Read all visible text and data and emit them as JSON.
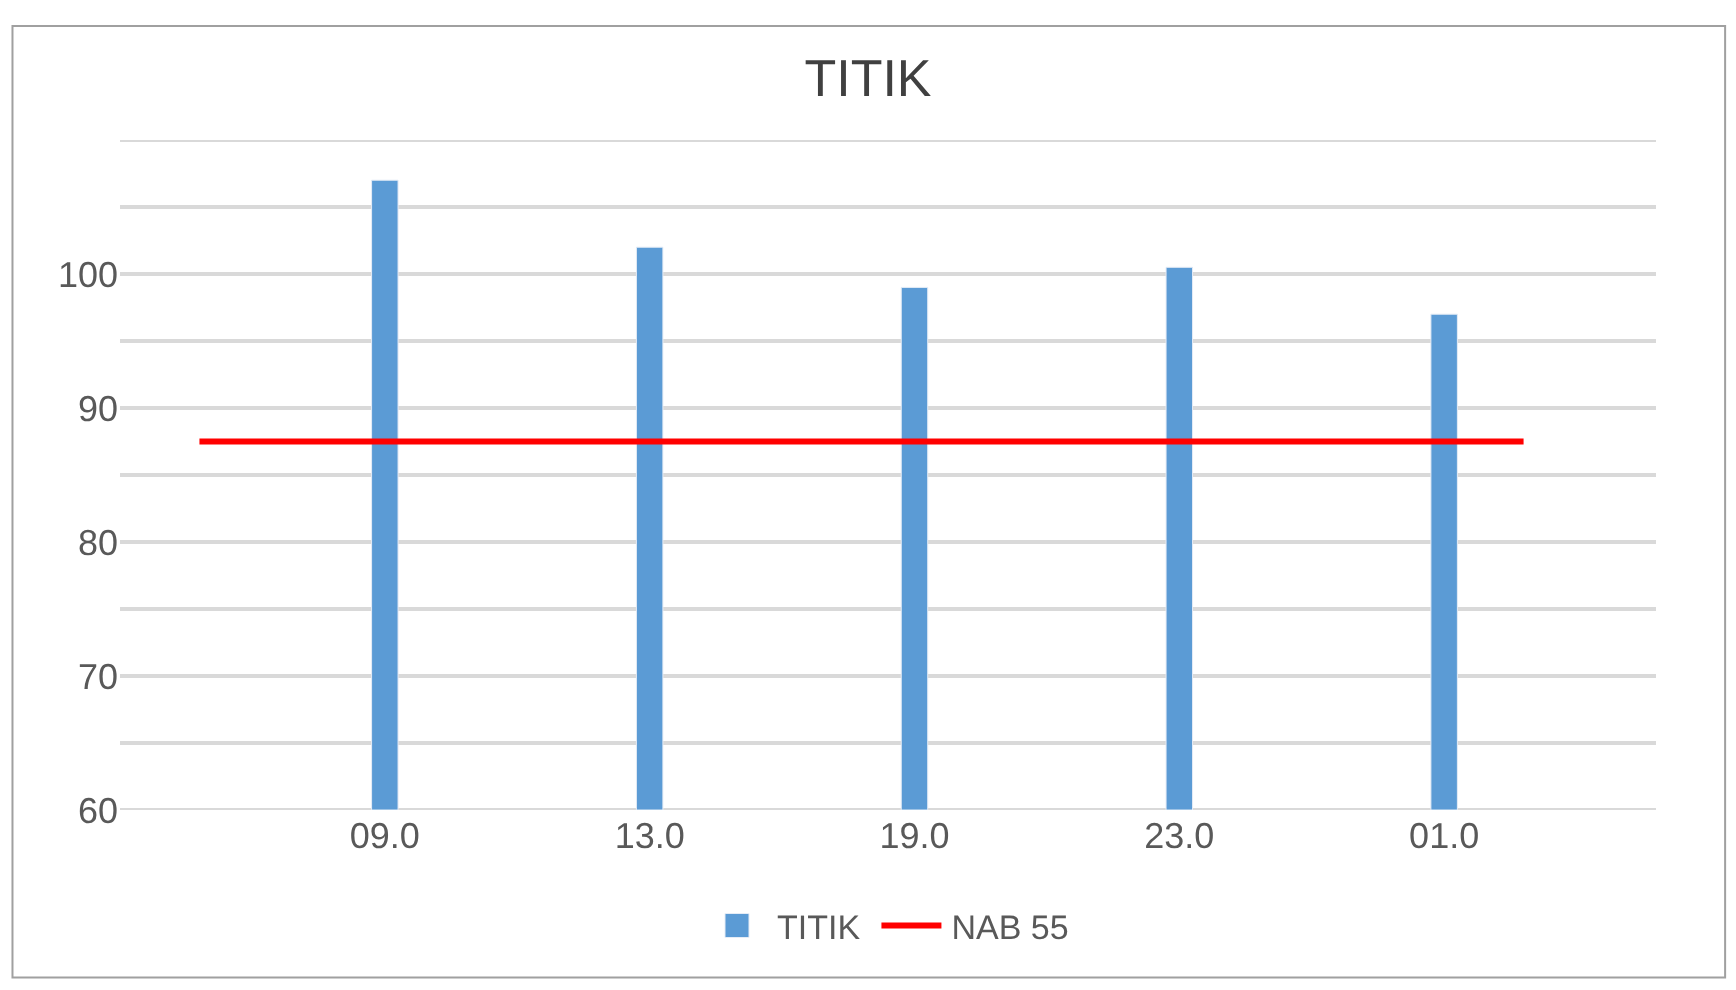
{
  "chart_data": {
    "type": "bar",
    "title": "TITIK",
    "categories": [
      "09.0",
      "13.0",
      "19.0",
      "23.0",
      "01.0"
    ],
    "series": [
      {
        "name": "TITIK",
        "color": "#5b9bd5",
        "values": [
          107,
          102,
          99,
          100.5,
          97
        ]
      }
    ],
    "ref_lines": [
      {
        "axis": "y",
        "value": 87.5,
        "label": "NAB 55",
        "color": "#ff0000",
        "line_style": "solid"
      }
    ],
    "ylim": [
      60,
      110
    ],
    "yticks": [
      60,
      {
        "value": 65,
        "label": null
      },
      70,
      {
        "value": 75,
        "label": null
      },
      80,
      {
        "value": 85,
        "label": null
      },
      90,
      {
        "value": 95,
        "label": null
      },
      100,
      {
        "value": 105,
        "label": null
      },
      {
        "value": 110,
        "label": null
      }
    ],
    "grid": "y",
    "legend": "bottom"
  }
}
